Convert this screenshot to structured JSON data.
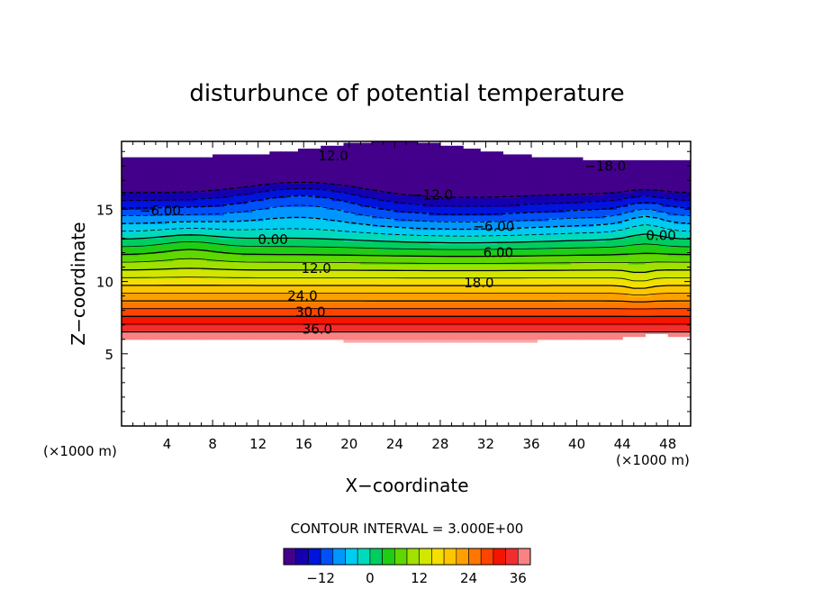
{
  "chart_data": {
    "type": "heatmap",
    "title": "disturbunce of potential temperature",
    "xlabel": "X−coordinate",
    "ylabel": "Z−coordinate",
    "x_unit": "(×1000 m)",
    "x_unit_right": "(×1000 m)",
    "xlim": [
      0,
      50
    ],
    "ylim": [
      0,
      19.7
    ],
    "x_ticks": [
      4,
      8,
      12,
      16,
      20,
      24,
      28,
      32,
      36,
      40,
      44,
      48
    ],
    "x_minor_step": 1,
    "y_ticks": [
      5,
      10,
      15
    ],
    "y_minor_step": 1,
    "contour_interval_text": "CONTOUR INTERVAL = 3.000E+00",
    "contour_interval": 3.0,
    "colorbar": {
      "range": [
        -21,
        39
      ],
      "step": 3,
      "ticks": [
        -12,
        0,
        12,
        24,
        36
      ],
      "tick_labels": [
        "−12",
        "0",
        "12",
        "24",
        "36"
      ]
    },
    "contour_labels": [
      {
        "text": "12.0",
        "x": 18.6,
        "y": 18.7
      },
      {
        "text": "−18.0",
        "x": 42.5,
        "y": 18.0
      },
      {
        "text": "−12.0",
        "x": 27.3,
        "y": 16.0
      },
      {
        "text": "−6.00",
        "x": 3.4,
        "y": 14.9
      },
      {
        "text": "−6.00",
        "x": 32.7,
        "y": 13.8
      },
      {
        "text": "0.00",
        "x": 13.3,
        "y": 12.9
      },
      {
        "text": "0.00",
        "x": 47.4,
        "y": 13.2
      },
      {
        "text": "6.00",
        "x": 33.1,
        "y": 12.0
      },
      {
        "text": "12.0",
        "x": 17.1,
        "y": 10.9
      },
      {
        "text": "18.0",
        "x": 31.4,
        "y": 9.9
      },
      {
        "text": "24.0",
        "x": 15.9,
        "y": 9.0
      },
      {
        "text": "30.0",
        "x": 16.6,
        "y": 7.9
      },
      {
        "text": "36.0",
        "x": 17.2,
        "y": 6.7
      }
    ]
  }
}
